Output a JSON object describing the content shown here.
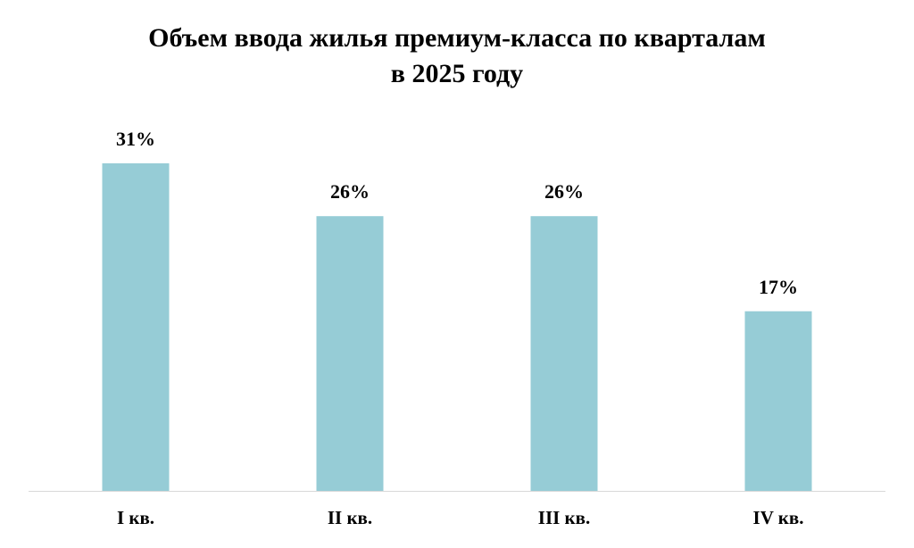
{
  "chart_data": {
    "type": "bar",
    "title": [
      "Объем ввода жилья премиум-класса по кварталам",
      "в 2025 году"
    ],
    "categories": [
      "I кв.",
      "II кв.",
      "III кв.",
      "IV кв."
    ],
    "values": [
      31,
      26,
      26,
      17
    ],
    "value_labels": [
      "31%",
      "26%",
      "26%",
      "17%"
    ],
    "color": "#96ccd6"
  }
}
